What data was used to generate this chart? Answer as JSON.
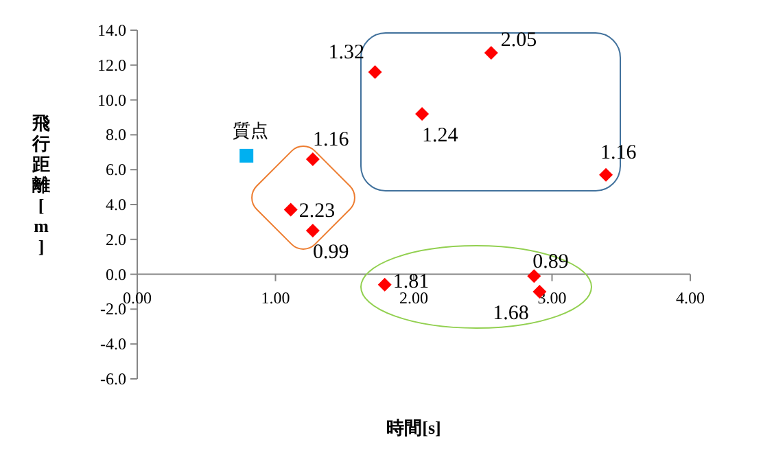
{
  "chart_data": {
    "type": "scatter",
    "xlabel": "時間[s]",
    "ylabel": "飛行距離[m]",
    "xlim": [
      0,
      4
    ],
    "ylim": [
      -6,
      14
    ],
    "xticks": [
      {
        "value": 0,
        "label": "0.00"
      },
      {
        "value": 1,
        "label": "1.00"
      },
      {
        "value": 2,
        "label": "2.00"
      },
      {
        "value": 3,
        "label": "3.00"
      },
      {
        "value": 4,
        "label": "4.00"
      }
    ],
    "yticks": [
      {
        "value": -6,
        "label": "-6.0"
      },
      {
        "value": -4,
        "label": "-4.0"
      },
      {
        "value": -2,
        "label": "-2.0"
      },
      {
        "value": 0,
        "label": "0.0"
      },
      {
        "value": 2,
        "label": "2.0"
      },
      {
        "value": 4,
        "label": "4.0"
      },
      {
        "value": 6,
        "label": "6.0"
      },
      {
        "value": 8,
        "label": "8.0"
      },
      {
        "value": 10,
        "label": "10.0"
      },
      {
        "value": 12,
        "label": "12.0"
      },
      {
        "value": 14,
        "label": "14.0"
      }
    ],
    "grid": false,
    "annotations": [
      {
        "text": "2.23",
        "x": 1.11,
        "y": 3.7
      },
      {
        "text": "1.16",
        "x": 1.27,
        "y": 6.6
      },
      {
        "text": "0.99",
        "x": 1.27,
        "y": 2.5
      },
      {
        "text": "1.32",
        "x": 1.72,
        "y": 11.6
      },
      {
        "text": "1.81",
        "x": 1.79,
        "y": -0.6
      },
      {
        "text": "1.24",
        "x": 2.06,
        "y": 9.2
      },
      {
        "text": "2.05",
        "x": 2.56,
        "y": 12.7
      },
      {
        "text": "0.89",
        "x": 2.87,
        "y": -0.1
      },
      {
        "text": "1.68",
        "x": 2.91,
        "y": -1.0
      },
      {
        "text": "1.16",
        "x": 3.39,
        "y": 5.7
      }
    ],
    "series": [
      {
        "color": "#ff0000",
        "marker": "diamond",
        "x": [
          1.11,
          1.27,
          1.27,
          1.72,
          1.79,
          2.06,
          2.56,
          2.87,
          2.91,
          3.39
        ],
        "values": [
          3.7,
          6.6,
          2.5,
          11.6,
          -0.6,
          9.2,
          12.7,
          -0.1,
          -1.0,
          5.7
        ]
      },
      {
        "name": "質点",
        "color": "#00b0f0",
        "marker": "square",
        "x": [
          0.79
        ],
        "values": [
          6.8
        ]
      }
    ]
  }
}
